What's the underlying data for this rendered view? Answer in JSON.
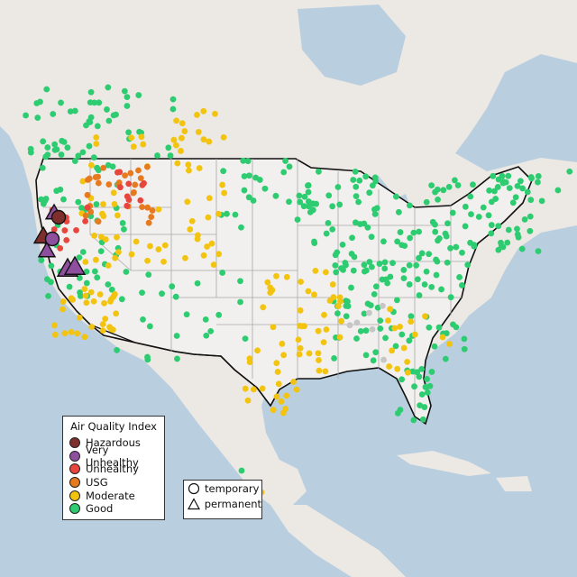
{
  "legend": {
    "title": "Air Quality Index",
    "categories": [
      {
        "label": "Hazardous",
        "color": "#7e2f2c"
      },
      {
        "label": "Very Unhealthy",
        "color": "#8f4f9f"
      },
      {
        "label": "Unhealthy",
        "color": "#e8453c"
      },
      {
        "label": "USG",
        "color": "#e77a1f"
      },
      {
        "label": "Moderate",
        "color": "#f2c40f"
      },
      {
        "label": "Good",
        "color": "#2ecc71"
      }
    ]
  },
  "shape_legend": {
    "temporary": "temporary",
    "permanent": "permanent"
  },
  "colors": {
    "water": "#b9cfe0",
    "land": "#ece8e4",
    "us_land": "#f2f0ee",
    "border": "#111111",
    "state_line": "#a8a8a8",
    "no_data": "#c6c6c6"
  }
}
